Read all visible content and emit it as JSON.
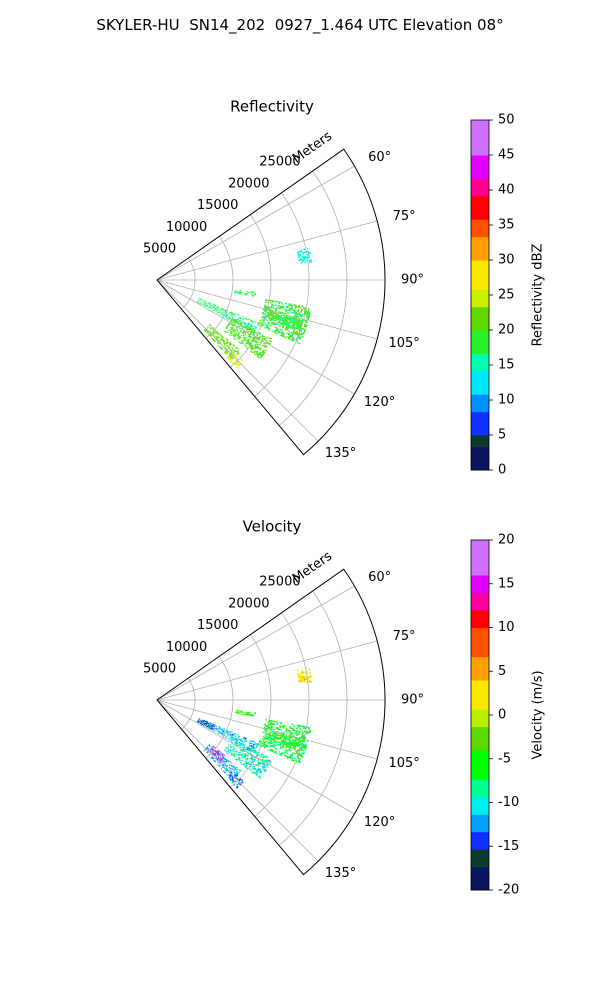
{
  "figure": {
    "suptitle": "SKYLER-HU  SN14_202  0927_1.464 UTC Elevation 08°"
  },
  "chart_data": [
    {
      "type": "heatmap",
      "projection": "polar-sector",
      "title": "Reflectivity",
      "radial_label": "Meters",
      "r_ticks": [
        5000,
        10000,
        15000,
        20000,
        25000
      ],
      "r_lim": [
        0,
        30000
      ],
      "theta_ticks": [
        "60°",
        "75°",
        "90°",
        "105°",
        "120°",
        "135°"
      ],
      "theta_lim_deg": [
        55,
        140
      ],
      "grid": true,
      "colorbar": {
        "label": "Reflectivity dBZ",
        "range": [
          0,
          50
        ],
        "ticks": [
          0,
          5,
          10,
          15,
          20,
          25,
          30,
          35,
          40,
          45,
          50
        ],
        "stops": [
          [
            0,
            "#0b1560"
          ],
          [
            3,
            "#0b3a2a"
          ],
          [
            5,
            "#1030ff"
          ],
          [
            8,
            "#0090ff"
          ],
          [
            11,
            "#00e8ff"
          ],
          [
            14,
            "#00ffb0"
          ],
          [
            17,
            "#2af02a"
          ],
          [
            20,
            "#60d800"
          ],
          [
            23,
            "#c8f000"
          ],
          [
            26,
            "#ffe800"
          ],
          [
            30,
            "#ffa000"
          ],
          [
            33,
            "#ff5000"
          ],
          [
            36,
            "#ff0000"
          ],
          [
            39,
            "#ff0090"
          ],
          [
            42,
            "#e000ff"
          ],
          [
            45,
            "#d070ff"
          ],
          [
            50,
            "#f8e8ff"
          ]
        ]
      },
      "echo_regions": [
        {
          "r_km": [
            18.8,
            20.5
          ],
          "az_deg": [
            78,
            83
          ],
          "value": 14
        },
        {
          "r_km": [
            10.3,
            13.0
          ],
          "az_deg": [
            97,
            99.5
          ],
          "value": 17
        },
        {
          "r_km": [
            14.5,
            20.5
          ],
          "az_deg": [
            100,
            114
          ],
          "value": 19
        },
        {
          "r_km": [
            6.0,
            14.5
          ],
          "az_deg": [
            113,
            119
          ],
          "value": 17
        },
        {
          "r_km": [
            11.0,
            17.0
          ],
          "az_deg": [
            117,
            127
          ],
          "value": 20
        },
        {
          "r_km": [
            9.0,
            14.5
          ],
          "az_deg": [
            130,
            137
          ],
          "value": 21
        },
        {
          "r_km": [
            13.5,
            15.5
          ],
          "az_deg": [
            133,
            137.5
          ],
          "value": 26
        }
      ]
    },
    {
      "type": "heatmap",
      "projection": "polar-sector",
      "title": "Velocity",
      "radial_label": "Meters",
      "r_ticks": [
        5000,
        10000,
        15000,
        20000,
        25000
      ],
      "r_lim": [
        0,
        30000
      ],
      "theta_ticks": [
        "60°",
        "75°",
        "90°",
        "105°",
        "120°",
        "135°"
      ],
      "theta_lim_deg": [
        55,
        140
      ],
      "grid": true,
      "colorbar": {
        "label": "Velocity (m/s)",
        "range": [
          -20,
          20
        ],
        "ticks": [
          -20,
          -15,
          -10,
          -5,
          0,
          5,
          10,
          15,
          20
        ],
        "stops": [
          [
            -20,
            "#0b1560"
          ],
          [
            -17.5,
            "#0b3a2a"
          ],
          [
            -15.5,
            "#1030ff"
          ],
          [
            -13,
            "#00a0ff"
          ],
          [
            -11,
            "#00f0f0"
          ],
          [
            -9,
            "#00ff90"
          ],
          [
            -7,
            "#00ff00"
          ],
          [
            -4,
            "#5ad800"
          ],
          [
            -1.5,
            "#b8f000"
          ],
          [
            0.5,
            "#ffe800"
          ],
          [
            4,
            "#ffa000"
          ],
          [
            7,
            "#ff5000"
          ],
          [
            10,
            "#ff0000"
          ],
          [
            12,
            "#ff00a0"
          ],
          [
            14,
            "#e000ff"
          ],
          [
            16,
            "#d070ff"
          ],
          [
            20,
            "#fce8ff"
          ]
        ]
      },
      "echo_regions": [
        {
          "r_km": [
            18.8,
            20.5
          ],
          "az_deg": [
            78,
            83
          ],
          "value": 2
        },
        {
          "r_km": [
            10.3,
            13.0
          ],
          "az_deg": [
            97,
            99.5
          ],
          "value": -4
        },
        {
          "r_km": [
            14.5,
            20.5
          ],
          "az_deg": [
            100,
            114
          ],
          "value": -6
        },
        {
          "r_km": [
            6.0,
            14.5
          ],
          "az_deg": [
            113,
            119
          ],
          "value": -11
        },
        {
          "r_km": [
            6.0,
            8.0
          ],
          "az_deg": [
            113,
            119
          ],
          "value": -15
        },
        {
          "r_km": [
            11.0,
            17.0
          ],
          "az_deg": [
            117,
            127
          ],
          "value": -9
        },
        {
          "r_km": [
            9.0,
            14.5
          ],
          "az_deg": [
            130,
            137
          ],
          "value": -11
        },
        {
          "r_km": [
            9.5,
            11.5
          ],
          "az_deg": [
            129,
            134
          ],
          "value": 15
        },
        {
          "r_km": [
            13.5,
            15.5
          ],
          "az_deg": [
            133,
            137.5
          ],
          "value": -13
        }
      ]
    }
  ]
}
